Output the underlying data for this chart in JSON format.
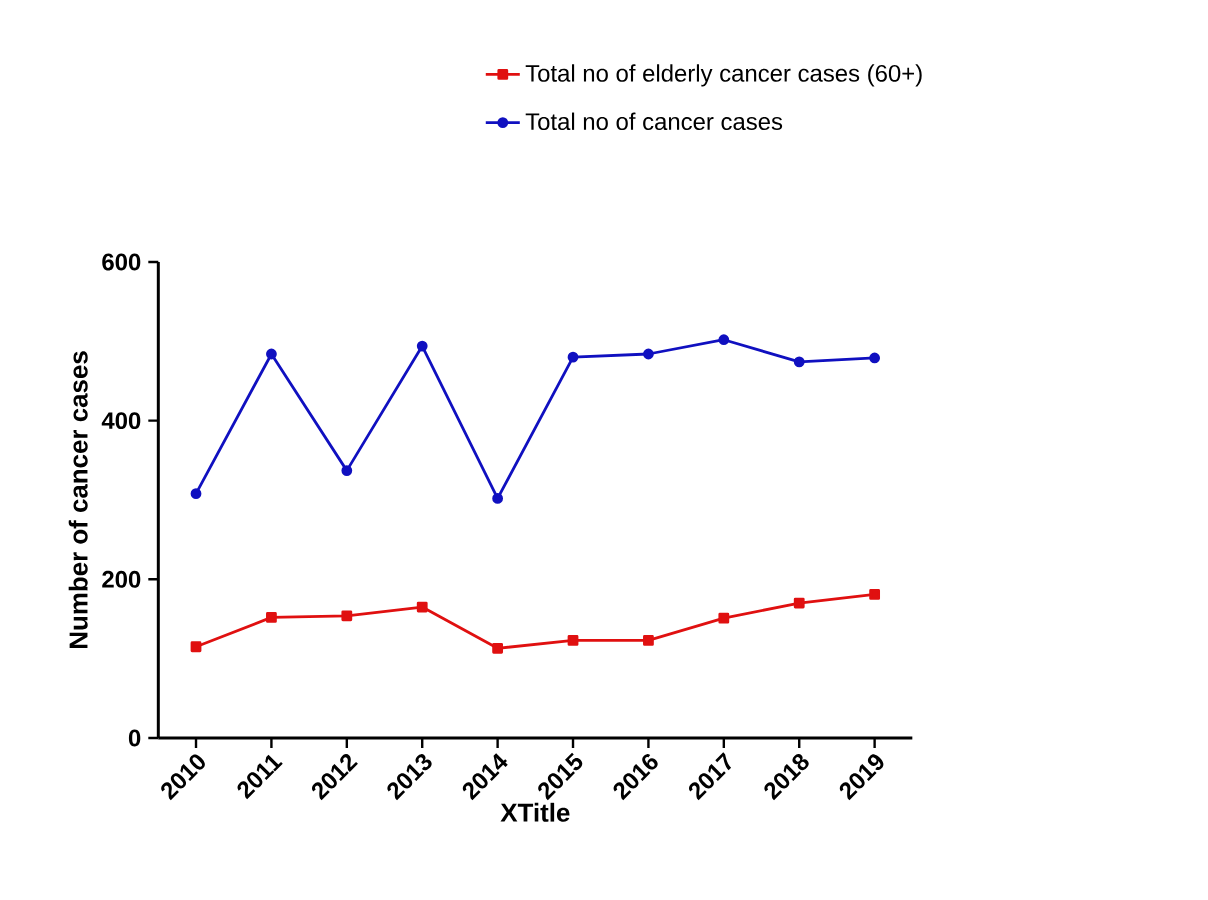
{
  "chart_data": {
    "type": "line",
    "xlabel": "XTitle",
    "ylabel": "Number of cancer cases",
    "categories": [
      "2010",
      "2011",
      "2012",
      "2013",
      "2014",
      "2015",
      "2016",
      "2017",
      "2018",
      "2019"
    ],
    "series": [
      {
        "name": "Total no of elderly cancer cases (60+)",
        "color": "#e01010",
        "marker": "square",
        "values": [
          115,
          152,
          154,
          165,
          113,
          123,
          123,
          151,
          170,
          181
        ]
      },
      {
        "name": "Total no of cancer cases",
        "color": "#1010c0",
        "marker": "circle",
        "values": [
          308,
          484,
          337,
          494,
          302,
          480,
          484,
          502,
          474,
          479
        ]
      }
    ],
    "ylim": [
      0,
      600
    ],
    "yticks": [
      0,
      200,
      400,
      600
    ],
    "grid": false,
    "legend": "top right"
  }
}
